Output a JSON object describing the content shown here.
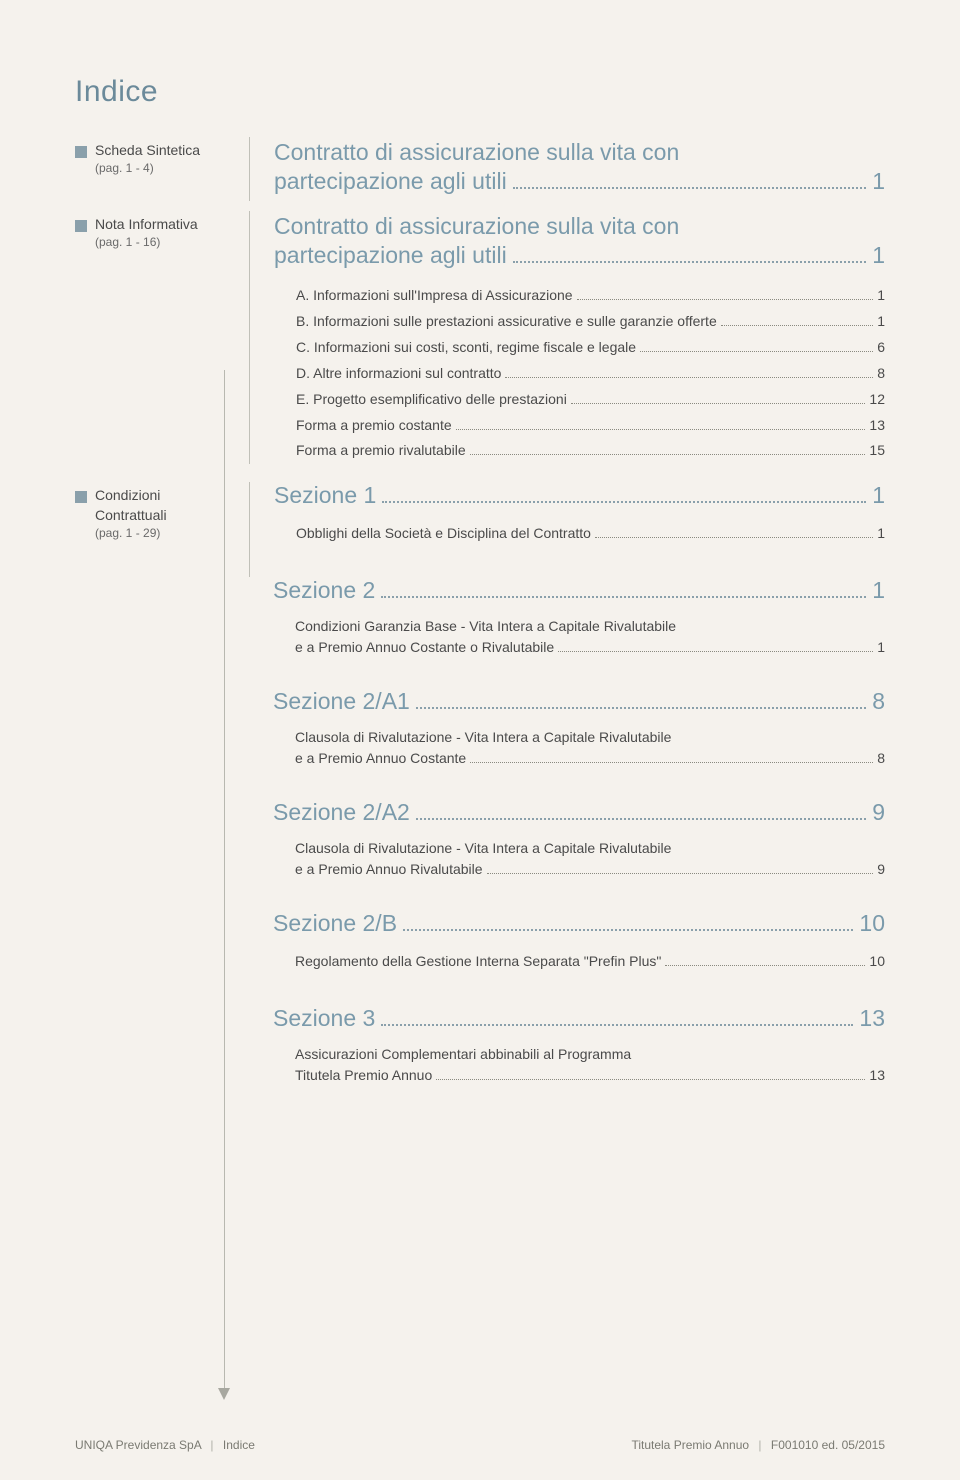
{
  "title": "Indice",
  "sidebar": {
    "scheda": {
      "label": "Scheda Sintetica",
      "pages": "(pag. 1 - 4)"
    },
    "nota": {
      "label": "Nota Informativa",
      "pages": "(pag. 1 - 16)"
    },
    "condizioni": {
      "label1": "Condizioni",
      "label2": "Contrattuali",
      "pages": "(pag. 1 - 29)"
    }
  },
  "contratto1": {
    "line1": "Contratto di assicurazione sulla vita con",
    "line2": "partecipazione agli utili",
    "page": "1"
  },
  "contratto2": {
    "line1": "Contratto di assicurazione sulla vita con",
    "line2": "partecipazione agli utili",
    "page": "1",
    "items": [
      {
        "label": "A. Informazioni sull'Impresa di Assicurazione",
        "page": "1"
      },
      {
        "label": "B. Informazioni sulle prestazioni assicurative e sulle garanzie offerte",
        "page": "1"
      },
      {
        "label": "C. Informazioni sui costi, sconti, regime fiscale e legale",
        "page": "6"
      },
      {
        "label": "D. Altre informazioni sul contratto",
        "page": "8"
      },
      {
        "label": "E. Progetto esemplificativo delle prestazioni",
        "page": "12"
      },
      {
        "label": "Forma a premio costante",
        "page": "13"
      },
      {
        "label": "Forma a premio rivalutabile",
        "page": "15"
      }
    ]
  },
  "sections": [
    {
      "title": "Sezione 1",
      "page": "1",
      "sub": {
        "type": "single",
        "label": "Obblighi della Società e Disciplina del Contratto",
        "page": "1"
      }
    },
    {
      "title": "Sezione 2",
      "page": "1",
      "sub": {
        "type": "multi",
        "line1": "Condizioni Garanzia Base - Vita Intera a Capitale Rivalutabile",
        "line2": "e a Premio Annuo Costante o Rivalutabile",
        "page": "1"
      }
    },
    {
      "title": "Sezione 2/A1",
      "page": "8",
      "sub": {
        "type": "multi",
        "line1": "Clausola di Rivalutazione - Vita Intera a Capitale Rivalutabile",
        "line2": "e a Premio Annuo Costante",
        "page": "8"
      }
    },
    {
      "title": "Sezione 2/A2",
      "page": "9",
      "sub": {
        "type": "multi",
        "line1": "Clausola di Rivalutazione - Vita Intera a Capitale Rivalutabile",
        "line2": "e a Premio Annuo Rivalutabile",
        "page": "9"
      }
    },
    {
      "title": "Sezione 2/B",
      "page": "10",
      "sub": {
        "type": "single",
        "label": "Regolamento della Gestione Interna Separata \"Prefin Plus\"",
        "page": "10"
      }
    },
    {
      "title": "Sezione 3",
      "page": "13",
      "sub": {
        "type": "multi",
        "line1": "Assicurazioni Complementari abbinabili al Programma",
        "line2": "Titutela Premio Annuo",
        "page": "13"
      }
    }
  ],
  "footer": {
    "left1": "UNIQA Previdenza SpA",
    "left2": "Indice",
    "right1": "Titutela Premio Annuo",
    "right2": "F001010 ed. 05/2015"
  },
  "colors": {
    "heading": "#7a9aab",
    "bullet": "#8aa0ab",
    "text": "#4a4a4a",
    "background": "#f5f2ed"
  }
}
